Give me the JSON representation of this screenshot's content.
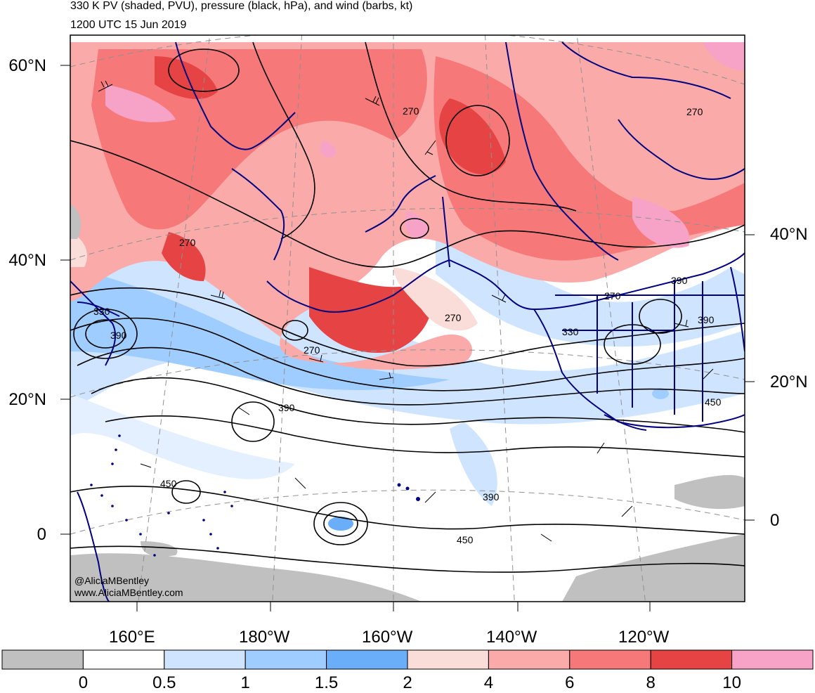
{
  "header": {
    "title": "330 K PV (shaded, PVU), pressure (black, hPa), and wind (barbs, kt)",
    "valid_time": "1200 UTC 15 Jun 2019"
  },
  "map": {
    "projection": "polar-stereographic north Pacific",
    "lat_labels_left": [
      "60°N",
      "40°N",
      "20°N",
      "0"
    ],
    "lat_labels_right": [
      "40°N",
      "20°N",
      "0"
    ],
    "lon_labels": [
      "160°E",
      "180°W",
      "160°W",
      "140°W",
      "120°W"
    ],
    "contour_labels": [
      "270",
      "270",
      "270",
      "270",
      "270",
      "330",
      "390",
      "330",
      "390",
      "390",
      "390",
      "450",
      "450",
      "450",
      "390",
      "270"
    ],
    "coastline_color": "#000080",
    "contour_color": "#000000",
    "credit_line1": "@AliciaMBentley",
    "credit_line2": "www.AliciaMBentley.com"
  },
  "colorbar": {
    "tick_labels": [
      "0",
      "0.5",
      "1",
      "1.5",
      "2",
      "4",
      "6",
      "8",
      "10"
    ],
    "colors": [
      "#c0c0c0",
      "#ffffff",
      "#cfe5ff",
      "#a0cdff",
      "#6aaef9",
      "#fadcd8",
      "#fbaaaa",
      "#f67878",
      "#e64444",
      "#f7a3c7"
    ]
  }
}
